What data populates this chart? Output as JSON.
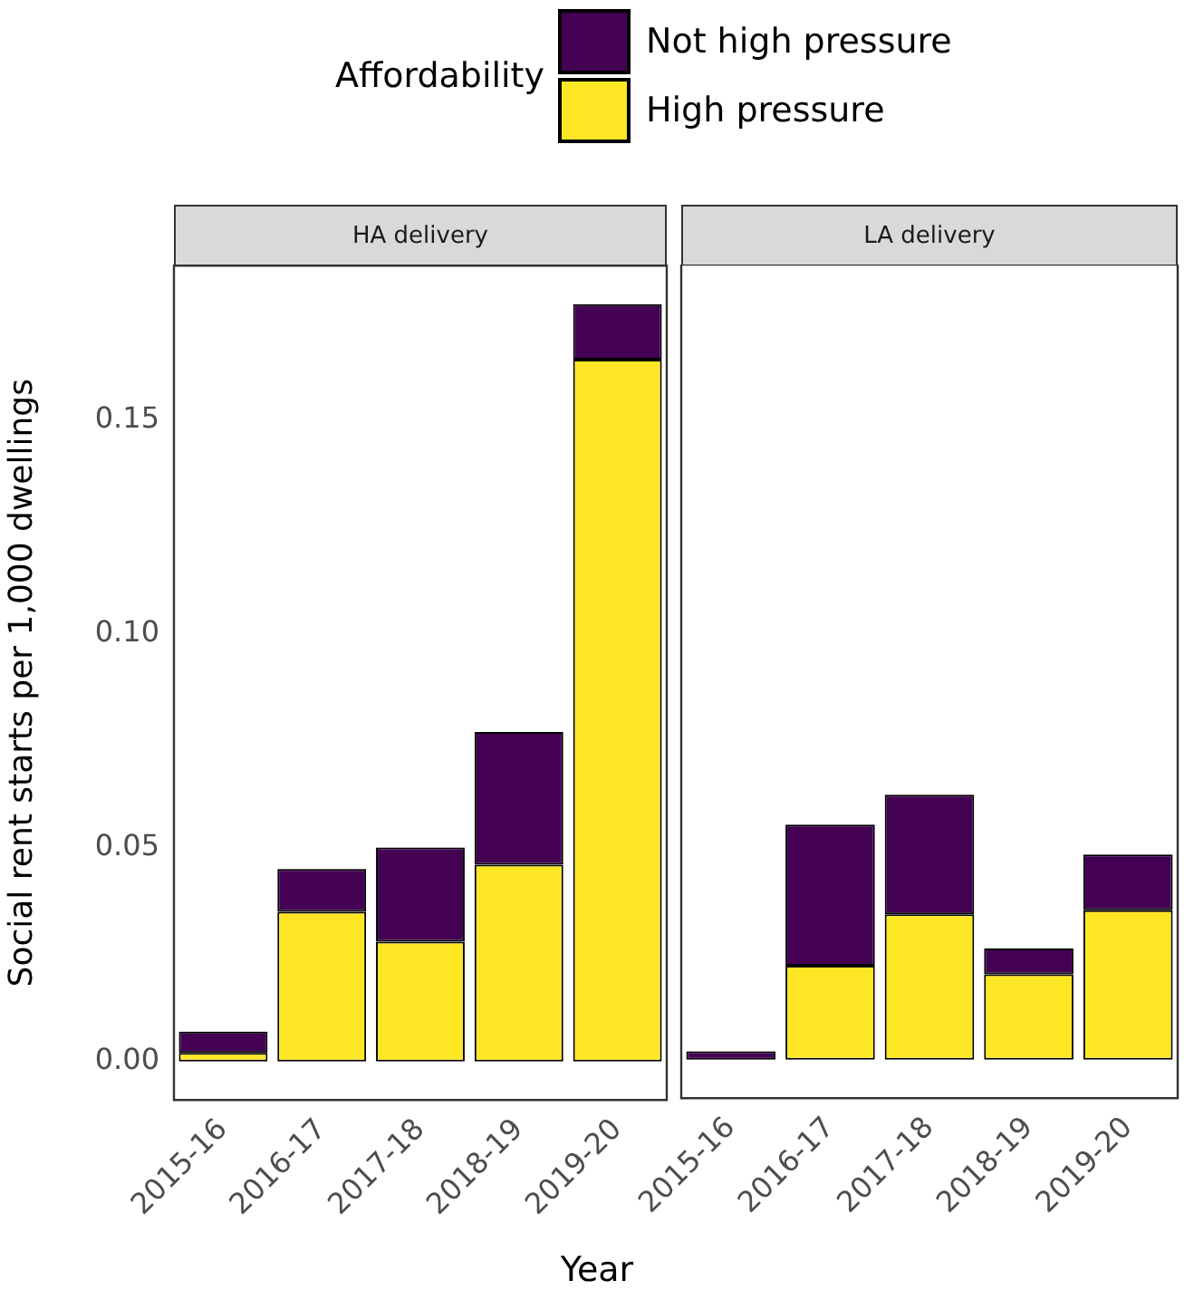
{
  "chart_data": [
    {
      "type": "bar",
      "title": "HA delivery",
      "xlabel": "Year",
      "ylabel": "Social rent starts per 1,000 dwellings",
      "legend_title": "Affordability",
      "legend": "top",
      "stacked": true,
      "grid": false,
      "categories": [
        "2015-16",
        "2016-17",
        "2017-18",
        "2018-19",
        "2019-20"
      ],
      "series": [
        {
          "name": "High pressure",
          "color": "#fde725",
          "values": [
            0.002,
            0.035,
            0.028,
            0.046,
            0.164
          ]
        },
        {
          "name": "Not high pressure",
          "color": "#440154",
          "values": [
            0.005,
            0.01,
            0.022,
            0.031,
            0.013
          ]
        }
      ],
      "ylim": [
        -0.009,
        0.186
      ],
      "yticks": [
        {
          "value": 0,
          "label": "0.00"
        },
        {
          "value": 0.05,
          "label": "0.05"
        },
        {
          "value": 0.1,
          "label": "0.10"
        },
        {
          "value": 0.15,
          "label": "0.15"
        }
      ]
    },
    {
      "type": "bar",
      "title": "LA delivery",
      "stacked": true,
      "grid": false,
      "tick_labels": "x",
      "categories": [
        "2015-16",
        "2016-17",
        "2017-18",
        "2018-19",
        "2019-20"
      ],
      "series": [
        {
          "color": "#fde725",
          "values": [
            0,
            0.022,
            0.034,
            0.02,
            0.035
          ]
        },
        {
          "color": "#440154",
          "values": [
            0.002,
            0.033,
            0.028,
            0.006,
            0.013
          ]
        }
      ],
      "ylim": [
        -0.009,
        0.186
      ]
    }
  ]
}
